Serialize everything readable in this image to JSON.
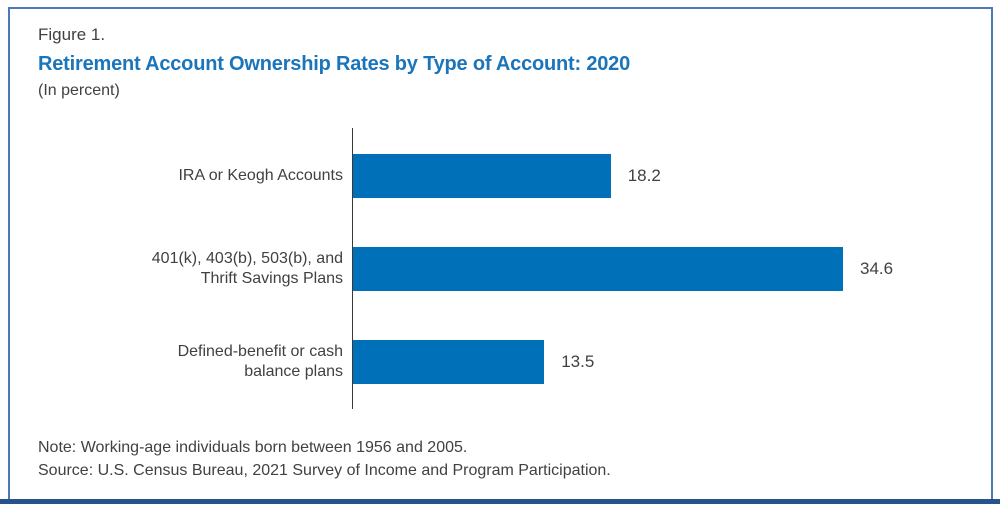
{
  "figure": {
    "label": "Figure 1.",
    "title": "Retirement Account Ownership Rates by Type of Account: 2020",
    "subtitle": "(In percent)"
  },
  "chart_data": {
    "type": "bar",
    "orientation": "horizontal",
    "title": "Retirement Account Ownership Rates by Type of Account: 2020",
    "units": "percent",
    "categories": [
      "IRA or Keogh Accounts",
      "401(k), 403(b), 503(b), and\nThrift Savings Plans",
      "Defined-benefit or cash\nbalance plans"
    ],
    "values": [
      18.2,
      34.6,
      13.5
    ],
    "value_labels": [
      "18.2",
      "34.6",
      "13.5"
    ],
    "xlim": [
      0,
      40
    ],
    "grid": false,
    "data_labels": true,
    "legend": "none",
    "bar_color": "#0070b9"
  },
  "notes": {
    "note": "Note: Working-age individuals born between 1956 and 2005.",
    "source": "Source: U.S. Census Bureau, 2021 Survey of Income and Program Participation."
  },
  "colors": {
    "title_blue": "#1a75bb",
    "bar_blue": "#0070b9",
    "text_dark": "#414042",
    "border_side": "#4a7ab8",
    "border_bottom": "#26538c",
    "axis_line": "#3a3a3a"
  }
}
